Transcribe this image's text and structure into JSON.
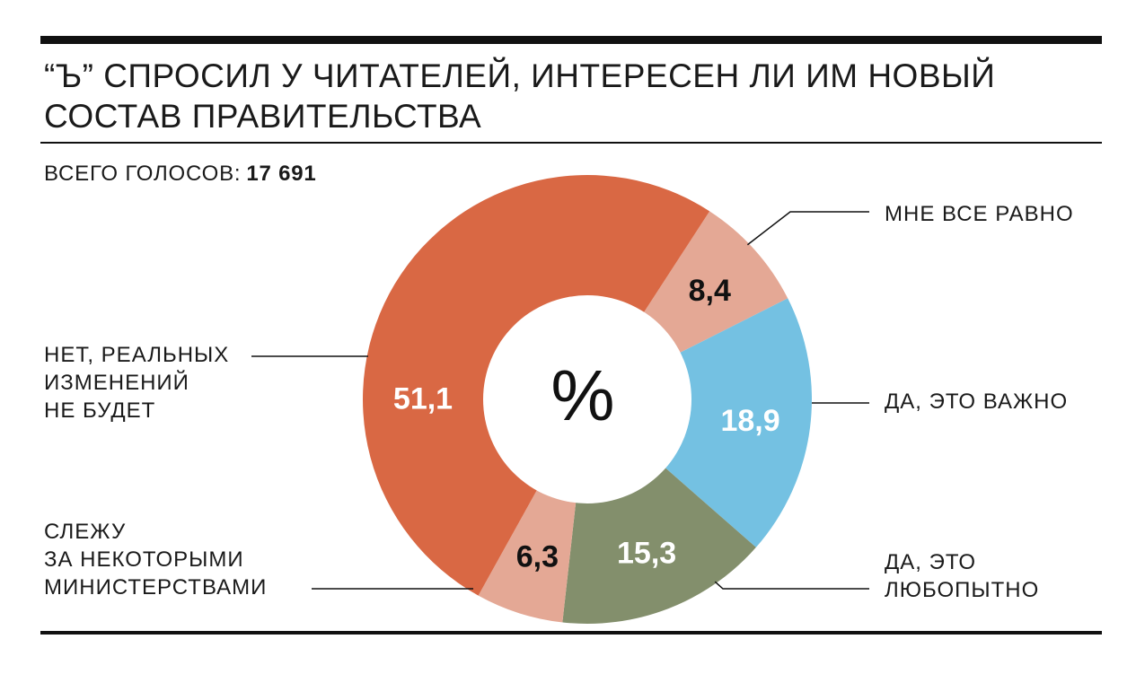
{
  "title_lines": [
    "“Ъ” СПРОСИЛ У ЧИТАТЕЛЕЙ, ИНТЕРЕСЕН ЛИ ИМ НОВЫЙ",
    "СОСТАВ ПРАВИТЕЛЬСТВА"
  ],
  "total": {
    "label": "ВСЕГО ГОЛОСОВ:",
    "value": "17 691"
  },
  "center_symbol": "%",
  "colors": {
    "rule": "#111111"
  },
  "chart_data": {
    "type": "pie",
    "donut": true,
    "unit": "%",
    "slices": [
      {
        "label_lines": [
          "МНЕ ВСЕ РАВНО"
        ],
        "value": 8.4,
        "value_label": "8,4",
        "color": "#e4a895",
        "value_color": "#111111"
      },
      {
        "label_lines": [
          "ДА, ЭТО ВАЖНО"
        ],
        "value": 18.9,
        "value_label": "18,9",
        "color": "#74c1e2",
        "value_color": "#ffffff"
      },
      {
        "label_lines": [
          "ДА, ЭТО",
          "ЛЮБОПЫТНО"
        ],
        "value": 15.3,
        "value_label": "15,3",
        "color": "#838f6c",
        "value_color": "#ffffff"
      },
      {
        "label_lines": [
          "СЛЕЖУ",
          "ЗА НЕКОТОРЫМИ",
          "МИНИСТЕРСТВАМИ"
        ],
        "value": 6.3,
        "value_label": "6,3",
        "color": "#e4a895",
        "value_color": "#111111"
      },
      {
        "label_lines": [
          "НЕТ, РЕАЛЬНЫХ",
          "ИЗМЕНЕНИЙ",
          "НЕ БУДЕТ"
        ],
        "value": 51.1,
        "value_label": "51,1",
        "color": "#d96844",
        "value_color": "#ffffff"
      }
    ]
  }
}
